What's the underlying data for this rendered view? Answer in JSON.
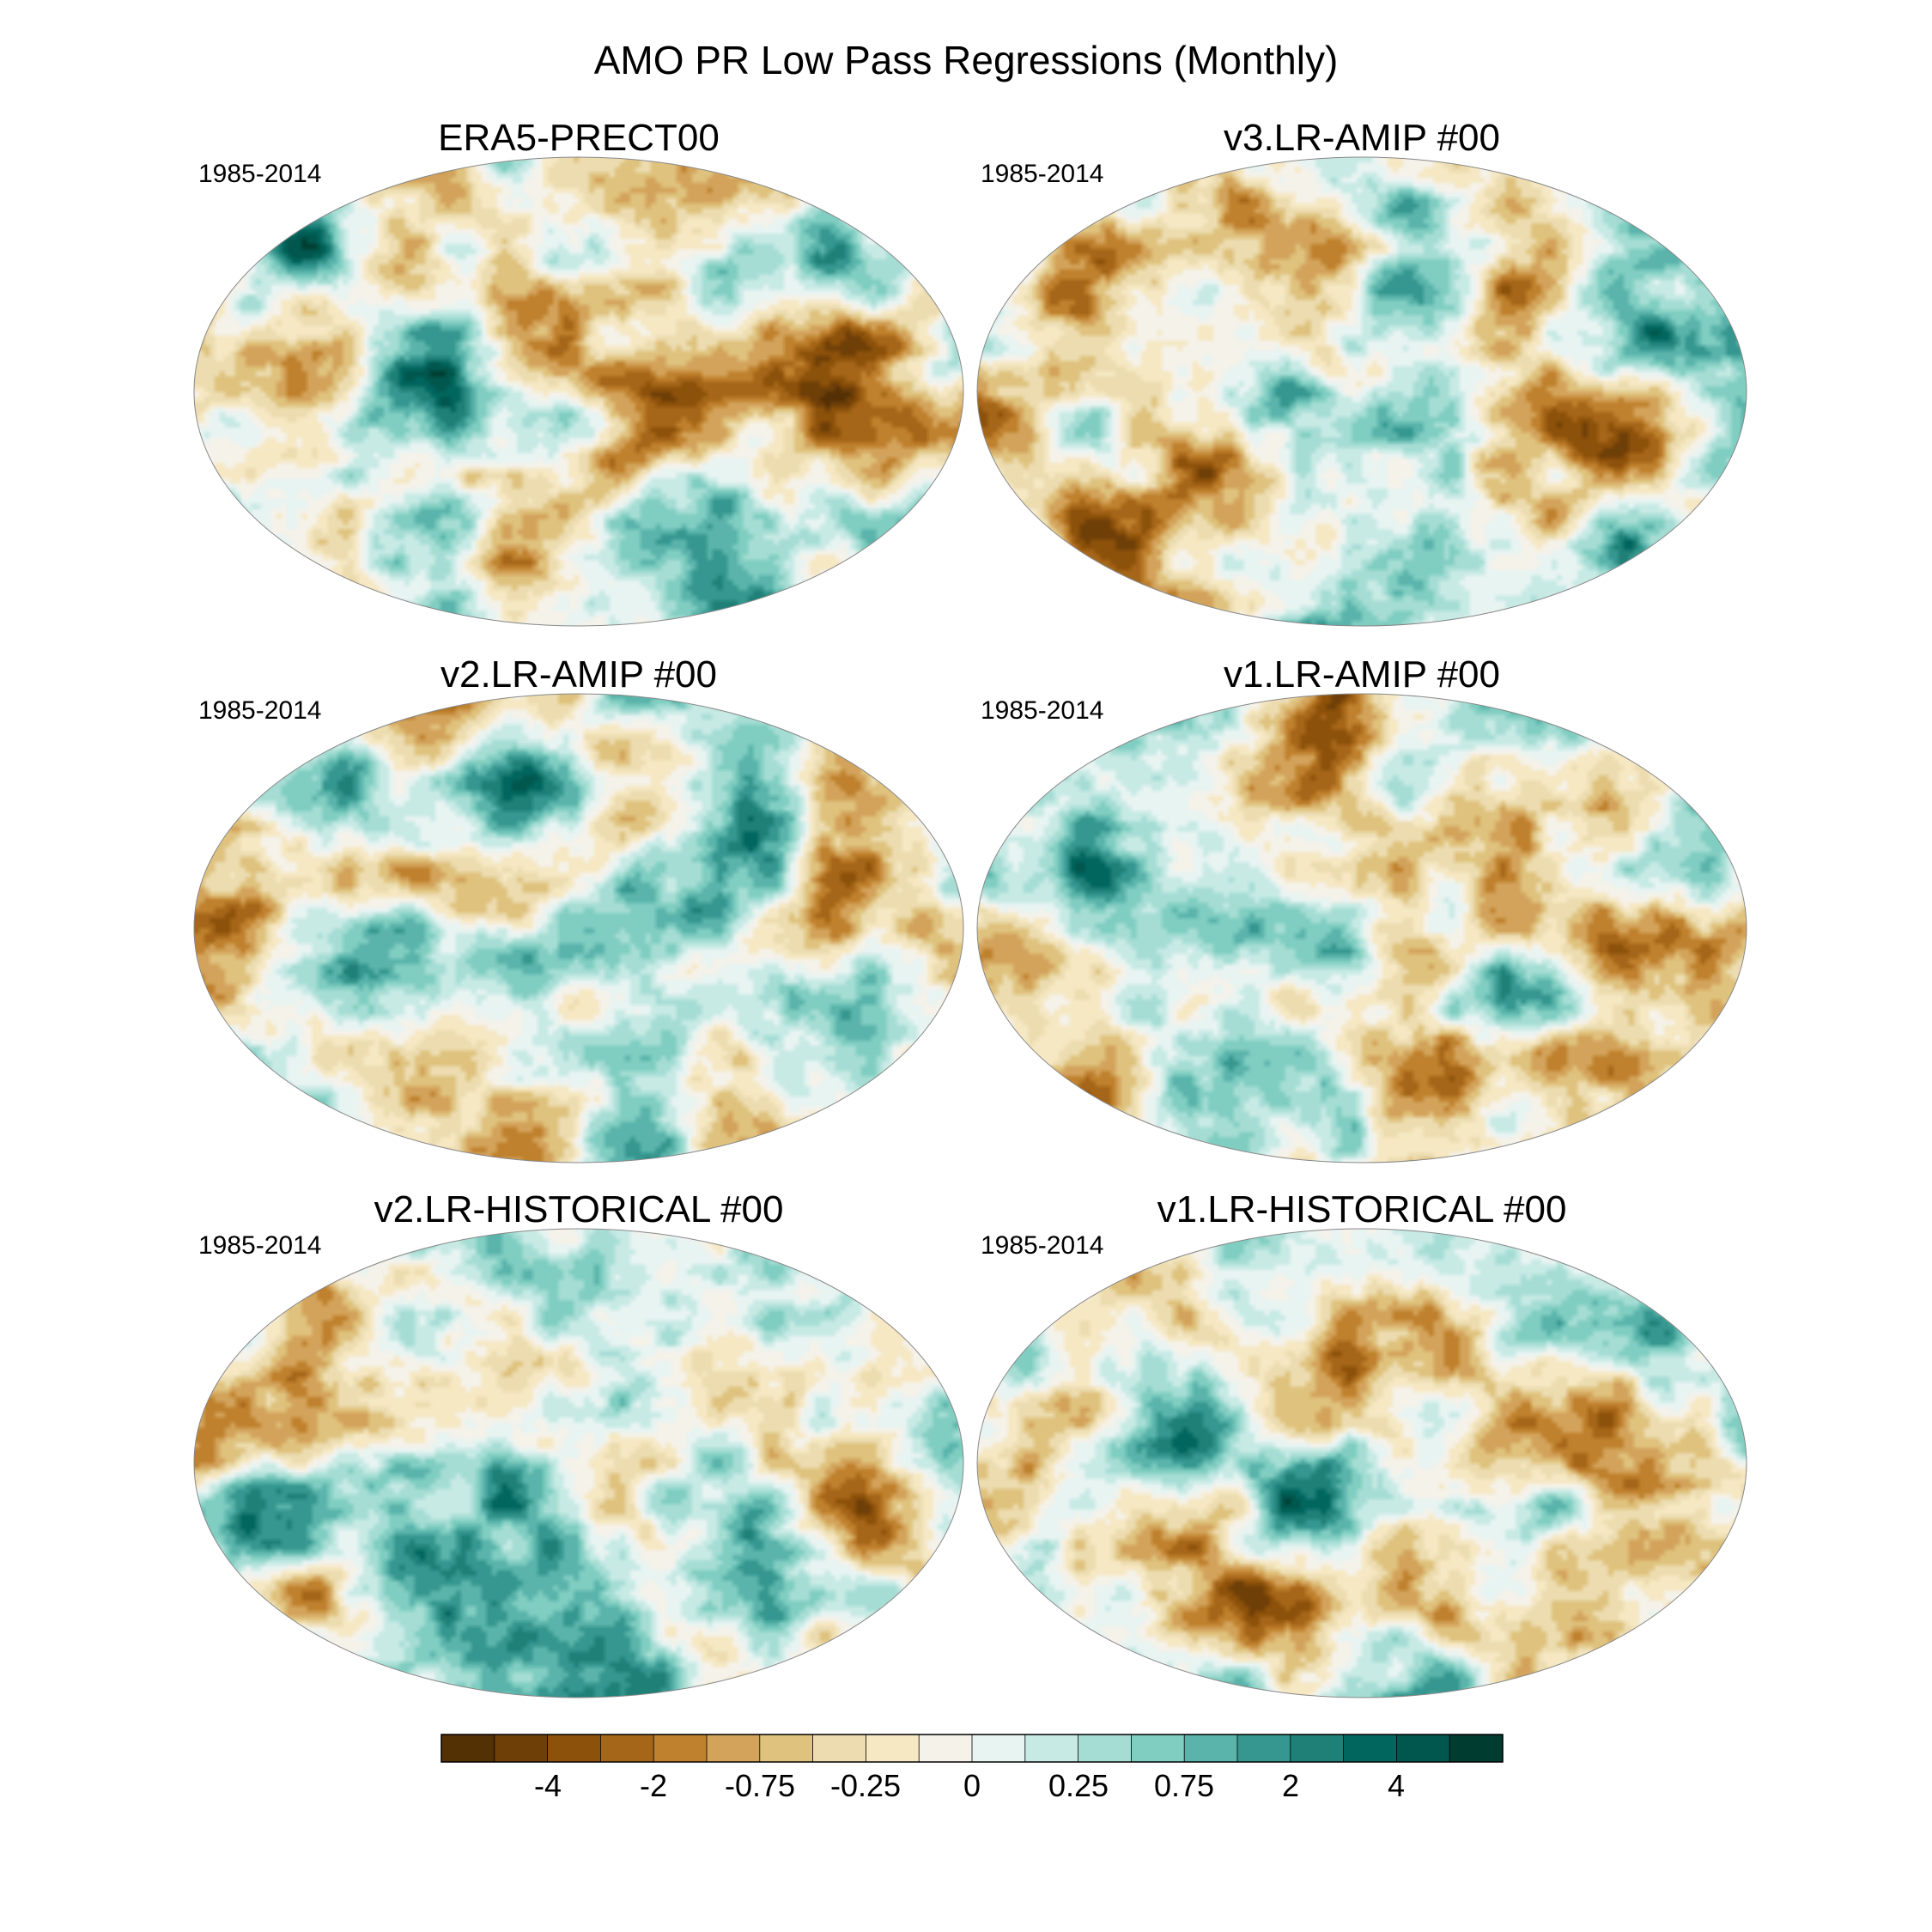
{
  "figure": {
    "title": "AMO PR Low Pass Regressions (Monthly)",
    "colormap": [
      "#543005",
      "#6f3f08",
      "#8c510a",
      "#a66619",
      "#bf812d",
      "#d3a35b",
      "#dfc27d",
      "#ecdcb0",
      "#f6e8c3",
      "#f5f2ea",
      "#e8f4f2",
      "#c7eae5",
      "#a5ddd4",
      "#80cdc1",
      "#5ab4ab",
      "#35978f",
      "#1f8077",
      "#01665e",
      "#01564d",
      "#003c30"
    ]
  },
  "panels": [
    {
      "title": "ERA5-PRECT00",
      "period": "1985-2014"
    },
    {
      "title": "v3.LR-AMIP  #00",
      "period": "1985-2014"
    },
    {
      "title": "v2.LR-AMIP  #00",
      "period": "1985-2014"
    },
    {
      "title": "v1.LR-AMIP  #00",
      "period": "1985-2014"
    },
    {
      "title": "v2.LR-HISTORICAL  #00",
      "period": "1985-2014"
    },
    {
      "title": "v1.LR-HISTORICAL  #00",
      "period": "1985-2014"
    }
  ],
  "colorbar": {
    "tick_labels": [
      "-4",
      "-2",
      "-0.75",
      "-0.25",
      "0",
      "0.25",
      "0.75",
      "2",
      "4"
    ]
  }
}
